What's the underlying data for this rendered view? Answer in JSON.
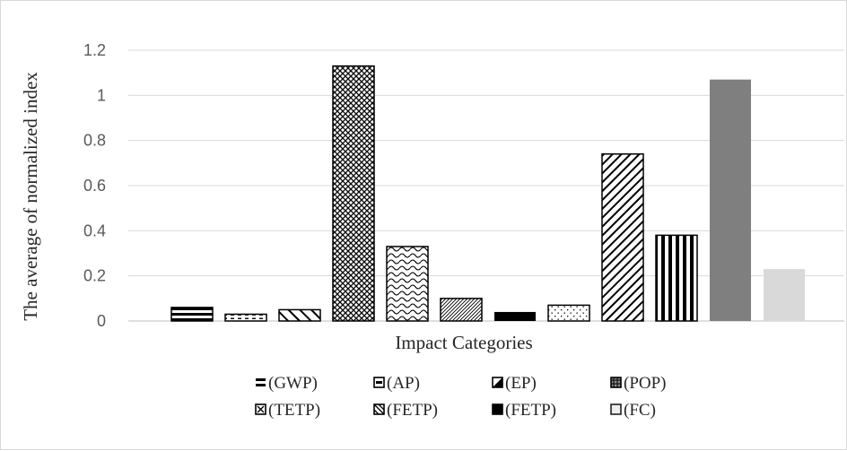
{
  "chart_data": {
    "type": "bar",
    "xlabel": "Impact Categories",
    "ylabel": "The average of normalized index",
    "ylim": [
      0,
      1.2
    ],
    "yticks": [
      0,
      0.2,
      0.4,
      0.6,
      0.8,
      1,
      1.2
    ],
    "ytick_labels": [
      "0",
      "0.2",
      "0.4",
      "0.6",
      "0.8",
      "1",
      "1.2"
    ],
    "grid": true,
    "legend_position": "bottom",
    "bars": [
      {
        "value": 0.06,
        "pattern": "hlines",
        "color": "#000000"
      },
      {
        "value": 0.03,
        "pattern": "dashes",
        "color": "#000000"
      },
      {
        "value": 0.05,
        "pattern": "diagonal-wide",
        "color": "#000000"
      },
      {
        "value": 1.13,
        "pattern": "crosshatch",
        "color": "#000000"
      },
      {
        "value": 0.33,
        "pattern": "waves",
        "color": "#000000"
      },
      {
        "value": 0.1,
        "pattern": "diagonal-fine",
        "color": "#000000"
      },
      {
        "value": 0.04,
        "pattern": "solid",
        "color": "#000000"
      },
      {
        "value": 0.07,
        "pattern": "dots",
        "color": "#000000"
      },
      {
        "value": 0.74,
        "pattern": "diagonal-dense",
        "color": "#000000"
      },
      {
        "value": 0.38,
        "pattern": "vlines",
        "color": "#000000"
      },
      {
        "value": 1.07,
        "pattern": "solid",
        "color": "#7f7f7f"
      },
      {
        "value": 0.23,
        "pattern": "solid",
        "color": "#d9d9d9"
      }
    ],
    "legend": [
      {
        "label": "(GWP)",
        "icon": "hlines"
      },
      {
        "label": "(AP)",
        "icon": "boxed-bar"
      },
      {
        "label": "(EP)",
        "icon": "half-split"
      },
      {
        "label": "(POP)",
        "icon": "grid-box"
      },
      {
        "label": " (TETP)",
        "icon": "boxed-x"
      },
      {
        "label": "(FETP)",
        "icon": "slashed-box"
      },
      {
        "label": "(FETP)",
        "icon": "solid-box"
      },
      {
        "label": "(FC)",
        "icon": "open-box"
      }
    ]
  }
}
